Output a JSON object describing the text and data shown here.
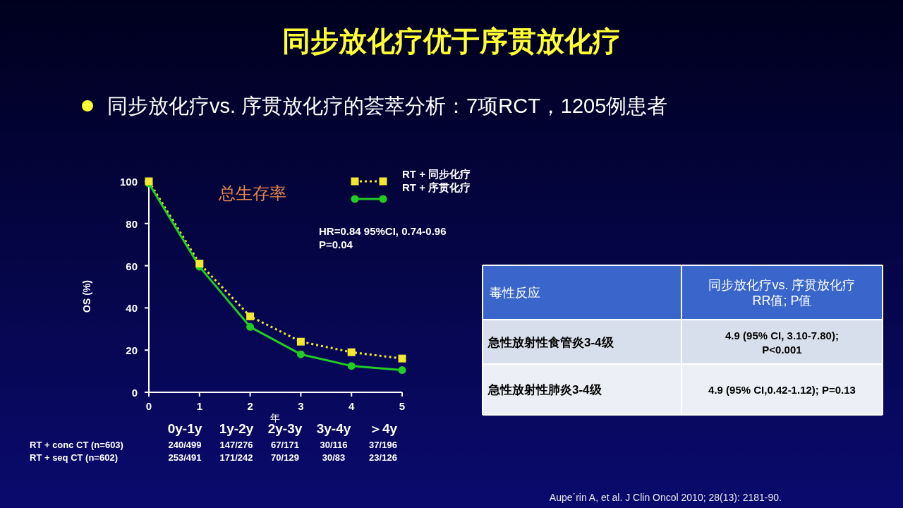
{
  "chart_data": [
    {
      "type": "other",
      "title": "同步放化疗优于序贯放化疗",
      "subtitle": "同步放化疗vs. 序贯放化疗的荟萃分析：7项RCT，1205例患者",
      "annotations": [
        "Aupe´rin A, et al. J Clin Oncol 2010; 28(13): 2181-90."
      ]
    },
    {
      "type": "line",
      "title": "总生存率",
      "xlabel": "年",
      "ylabel": "OS (%)",
      "x": [
        0,
        1,
        2,
        3,
        4,
        5
      ],
      "xlim": [
        0,
        5
      ],
      "xticks": [
        0,
        1,
        2,
        3,
        4,
        5
      ],
      "ylim": [
        0,
        100
      ],
      "yticks": [
        0,
        20,
        40,
        60,
        80,
        100
      ],
      "grid": false,
      "legend": "top right",
      "series": [
        {
          "name": "RT + 同步化疗",
          "color": "#f2e830",
          "marker": "square",
          "line_style": "dotted",
          "values": [
            100,
            61,
            36,
            24,
            19,
            16
          ]
        },
        {
          "name": "RT + 序贯化疗",
          "color": "#22cc22",
          "marker": "circle",
          "line_style": "solid",
          "values": [
            99,
            59.5,
            31,
            18,
            12.5,
            10.5
          ]
        }
      ],
      "annotations": [
        "HR=0.84 95%CI, 0.74-0.96\nP=0.04"
      ]
    },
    {
      "type": "other",
      "categories": [
        "0y-1y",
        "1y-2y",
        "2y-3y",
        "3y-4y",
        "＞4y"
      ],
      "y_categories": [
        "RT + conc CT (n=603)",
        "RT + seq CT (n=602)"
      ],
      "cell_labels": [
        [
          "240/499",
          "147/276",
          "67/171",
          "30/116",
          "37/196"
        ],
        [
          "253/491",
          "171/242",
          "70/129",
          "30/83",
          "23/126"
        ]
      ]
    },
    {
      "type": "other",
      "categories": [
        "毒性反应",
        "同步放化疗vs. 序贯放化疗\nRR值; P值"
      ],
      "y_categories": [
        "急性放射性食管炎3-4级",
        "急性放射性肺炎3-4级"
      ],
      "cell_labels": [
        [
          "4.9 (95% CI, 3.10-7.80);\nP<0.001"
        ],
        [
          "4.9 (95% CI,0.42-1.12); P=0.13"
        ]
      ]
    }
  ]
}
